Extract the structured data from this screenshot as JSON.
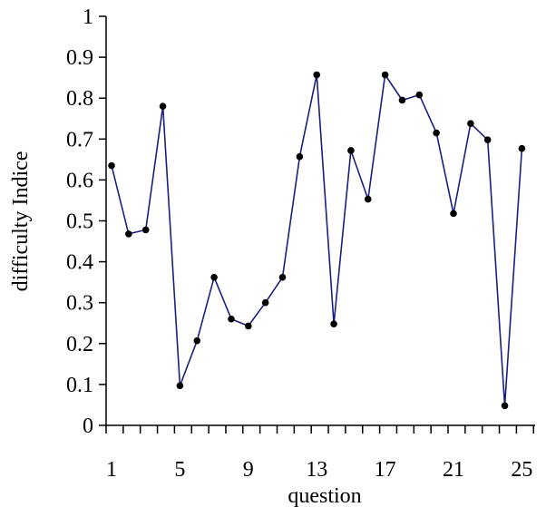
{
  "chart_data": {
    "type": "line",
    "title": "",
    "xlabel": "question",
    "ylabel": "difficulty Indice",
    "x": [
      1,
      2,
      3,
      4,
      5,
      6,
      7,
      8,
      9,
      10,
      11,
      12,
      13,
      14,
      15,
      16,
      17,
      18,
      19,
      20,
      21,
      22,
      23,
      24,
      25
    ],
    "series": [
      {
        "values": [
          0.635,
          0.468,
          0.478,
          0.78,
          0.097,
          0.207,
          0.362,
          0.26,
          0.243,
          0.3,
          0.362,
          0.657,
          0.857,
          0.248,
          0.672,
          0.553,
          0.857,
          0.795,
          0.808,
          0.715,
          0.518,
          0.738,
          0.698,
          0.048,
          0.677
        ],
        "color": "#1a1f80"
      }
    ],
    "xlim": [
      1,
      25
    ],
    "ylim": [
      0,
      1
    ],
    "x_tick_labels": [
      "1",
      "5",
      "9",
      "13",
      "17",
      "21",
      "25"
    ],
    "y_tick_labels": [
      "0",
      "0.1",
      "0.2",
      "0.3",
      "0.4",
      "0.5",
      "0.6",
      "0.7",
      "0.8",
      "0.9",
      "1"
    ],
    "grid": false,
    "legend": "none"
  }
}
